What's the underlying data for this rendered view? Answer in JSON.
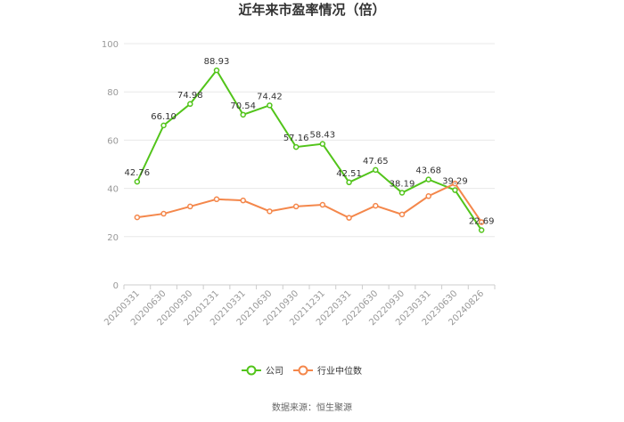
{
  "chart_data": {
    "type": "line",
    "title": "近年来市盈率情况（倍）",
    "categories": [
      "20200331",
      "20200630",
      "20200930",
      "20201231",
      "20210331",
      "20210630",
      "20210930",
      "20211231",
      "20220331",
      "20220630",
      "20220930",
      "20230331",
      "20230630",
      "20240826"
    ],
    "ylim": [
      0,
      100
    ],
    "yticks": [
      0,
      20,
      40,
      60,
      80,
      100
    ],
    "grid": true,
    "legend_position": "bottom",
    "series": [
      {
        "name": "公司",
        "color": "#52c41a",
        "values": [
          42.76,
          66.1,
          74.98,
          88.93,
          70.54,
          74.42,
          57.16,
          58.43,
          42.51,
          47.65,
          38.19,
          43.68,
          39.29,
          22.69
        ],
        "labels": [
          "42.76",
          "66.10",
          "74.98",
          "88.93",
          "70.54",
          "74.42",
          "57.16",
          "58.43",
          "42.51",
          "47.65",
          "38.19",
          "43.68",
          "39.29",
          "22.69"
        ]
      },
      {
        "name": "行业中位数",
        "color": "#f4874b",
        "values": [
          28.0,
          29.5,
          32.5,
          35.5,
          35.0,
          30.5,
          32.5,
          33.2,
          27.8,
          32.8,
          29.2,
          36.8,
          42.0,
          26.0
        ]
      }
    ],
    "source": "数据来源：恒生聚源"
  }
}
